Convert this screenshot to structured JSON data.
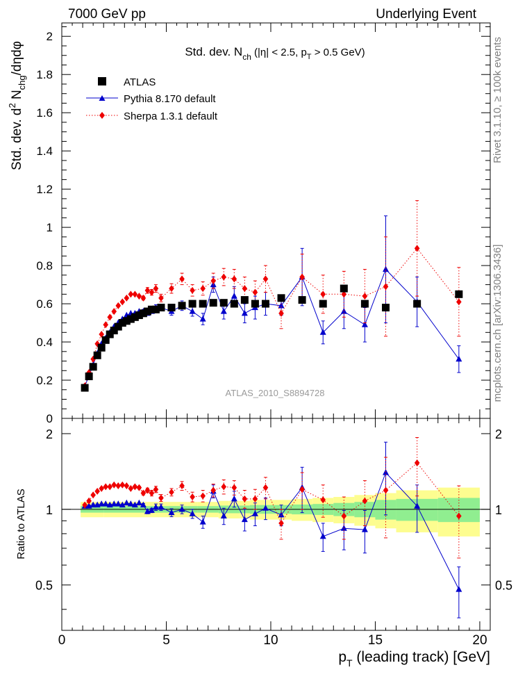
{
  "header": {
    "left": "7000 GeV pp",
    "right": "Underlying Event"
  },
  "side_text": {
    "top": "Rivet 3.1.10, ≥ 100k events",
    "bottom": "mcplots.cern.ch [arXiv:1306.3436]"
  },
  "chart_data": [
    {
      "type": "scatter",
      "title": {
        "main": "Std. dev. N",
        "sub1": "ch",
        "cond": " (|η| < 2.5, p",
        "sub2": "T",
        "tail": " > 0.5 GeV)"
      },
      "ylabel": {
        "a": "Std. dev. d",
        "sup": "2",
        "b": " N",
        "sub": "chg",
        "c": "/dηdφ"
      },
      "watermark": "ATLAS_2010_S8894728",
      "xlim": [
        0,
        20.5
      ],
      "ylim": [
        0,
        2.07
      ],
      "yticks": [
        0,
        0.2,
        0.4,
        0.6,
        0.8,
        1,
        1.2,
        1.4,
        1.6,
        1.8,
        2
      ],
      "ytick_labels": [
        "0",
        "0.2",
        "0.4",
        "0.6",
        "0.8",
        "1",
        "1.2",
        "1.4",
        "1.6",
        "1.8",
        "2"
      ],
      "legend_position": "top-left",
      "series": [
        {
          "name": "ATLAS",
          "color": "#000000",
          "marker": "square",
          "x": [
            1.1,
            1.3,
            1.5,
            1.7,
            1.9,
            2.1,
            2.3,
            2.5,
            2.7,
            2.9,
            3.1,
            3.3,
            3.5,
            3.7,
            3.9,
            4.1,
            4.3,
            4.5,
            4.75,
            5.25,
            5.75,
            6.25,
            6.75,
            7.25,
            7.75,
            8.25,
            8.75,
            9.25,
            9.75,
            10.5,
            11.5,
            12.5,
            13.5,
            14.5,
            15.5,
            17.0,
            19.0
          ],
          "y": [
            0.16,
            0.22,
            0.27,
            0.33,
            0.37,
            0.41,
            0.44,
            0.46,
            0.48,
            0.5,
            0.51,
            0.52,
            0.53,
            0.54,
            0.55,
            0.56,
            0.57,
            0.57,
            0.58,
            0.58,
            0.59,
            0.6,
            0.6,
            0.605,
            0.605,
            0.6,
            0.62,
            0.6,
            0.6,
            0.63,
            0.62,
            0.6,
            0.68,
            0.6,
            0.58,
            0.6,
            0.65
          ],
          "err": [
            0.005,
            0.005,
            0.005,
            0.005,
            0.005,
            0.005,
            0.005,
            0.005,
            0.005,
            0.005,
            0.005,
            0.005,
            0.005,
            0.005,
            0.005,
            0.005,
            0.005,
            0.005,
            0.005,
            0.005,
            0.005,
            0.005,
            0.005,
            0.005,
            0.005,
            0.005,
            0.005,
            0.005,
            0.005,
            0.01,
            0.01,
            0.01,
            0.01,
            0.01,
            0.01,
            0.01,
            0.01
          ]
        },
        {
          "name": "Pythia 8.170 default",
          "color": "#0000cc",
          "marker": "triangle",
          "line": "solid",
          "x": [
            1.1,
            1.3,
            1.5,
            1.7,
            1.9,
            2.1,
            2.3,
            2.5,
            2.7,
            2.9,
            3.1,
            3.3,
            3.5,
            3.7,
            3.9,
            4.1,
            4.3,
            4.5,
            4.75,
            5.25,
            5.75,
            6.25,
            6.75,
            7.25,
            7.75,
            8.25,
            8.75,
            9.25,
            9.75,
            10.5,
            11.5,
            12.5,
            13.5,
            14.5,
            15.5,
            17.0,
            19.0
          ],
          "y": [
            0.17,
            0.22,
            0.28,
            0.34,
            0.39,
            0.42,
            0.45,
            0.48,
            0.5,
            0.52,
            0.54,
            0.55,
            0.55,
            0.56,
            0.56,
            0.55,
            0.56,
            0.58,
            0.58,
            0.56,
            0.59,
            0.56,
            0.52,
            0.7,
            0.56,
            0.64,
            0.55,
            0.58,
            0.6,
            0.59,
            0.74,
            0.45,
            0.56,
            0.49,
            0.78,
            0.61,
            0.31
          ],
          "err": [
            0.005,
            0.005,
            0.005,
            0.005,
            0.005,
            0.005,
            0.005,
            0.005,
            0.005,
            0.005,
            0.005,
            0.005,
            0.005,
            0.005,
            0.01,
            0.01,
            0.01,
            0.015,
            0.015,
            0.02,
            0.025,
            0.025,
            0.03,
            0.04,
            0.04,
            0.05,
            0.05,
            0.06,
            0.06,
            0.05,
            0.15,
            0.06,
            0.09,
            0.09,
            0.28,
            0.13,
            0.07
          ]
        },
        {
          "name": "Sherpa 1.3.1 default",
          "color": "#ee0000",
          "marker": "diamond",
          "line": "dotted",
          "x": [
            1.1,
            1.3,
            1.5,
            1.7,
            1.9,
            2.1,
            2.3,
            2.5,
            2.7,
            2.9,
            3.1,
            3.3,
            3.5,
            3.7,
            3.9,
            4.1,
            4.3,
            4.5,
            4.75,
            5.25,
            5.75,
            6.25,
            6.75,
            7.25,
            7.75,
            8.25,
            8.75,
            9.25,
            9.75,
            10.5,
            11.5,
            12.5,
            13.5,
            14.5,
            15.5,
            17.0,
            19.0
          ],
          "y": [
            0.17,
            0.24,
            0.31,
            0.39,
            0.44,
            0.49,
            0.53,
            0.56,
            0.59,
            0.61,
            0.63,
            0.65,
            0.65,
            0.64,
            0.63,
            0.67,
            0.66,
            0.68,
            0.63,
            0.68,
            0.73,
            0.67,
            0.68,
            0.72,
            0.74,
            0.73,
            0.68,
            0.66,
            0.73,
            0.55,
            0.74,
            0.65,
            0.65,
            0.64,
            0.69,
            0.89,
            0.61
          ],
          "err": [
            0.005,
            0.005,
            0.005,
            0.005,
            0.005,
            0.005,
            0.005,
            0.005,
            0.005,
            0.005,
            0.005,
            0.005,
            0.005,
            0.005,
            0.01,
            0.015,
            0.015,
            0.02,
            0.02,
            0.025,
            0.03,
            0.03,
            0.035,
            0.04,
            0.045,
            0.05,
            0.06,
            0.06,
            0.07,
            0.08,
            0.12,
            0.1,
            0.12,
            0.14,
            0.26,
            0.25,
            0.18
          ]
        }
      ]
    },
    {
      "type": "scatter",
      "ylabel": "Ratio to ATLAS",
      "xlabel": {
        "a": "p",
        "sub": "T",
        "b": " (leading track) [GeV]"
      },
      "xlim": [
        0,
        20.5
      ],
      "ylim": [
        0.33,
        2.3
      ],
      "xticks": [
        0,
        5,
        10,
        15,
        20
      ],
      "xtick_labels": [
        "0",
        "5",
        "10",
        "15",
        "20"
      ],
      "yticks": [
        0.5,
        1,
        2
      ],
      "ytick_labels": [
        "0.5",
        "1",
        "2"
      ],
      "band": {
        "inner_color": "#90ee90",
        "outer_color": "#fdfd90",
        "edges": [
          0.9,
          2.0,
          4.0,
          5.0,
          5.5,
          6.0,
          6.5,
          7.0,
          7.5,
          8.0,
          8.5,
          9.0,
          9.5,
          10.0,
          11.0,
          12.0,
          13.0,
          14.0,
          15.0,
          16.0,
          18.0,
          20.0
        ],
        "inner": [
          0.03,
          0.03,
          0.03,
          0.03,
          0.03,
          0.03,
          0.03,
          0.03,
          0.035,
          0.035,
          0.035,
          0.04,
          0.04,
          0.04,
          0.045,
          0.05,
          0.06,
          0.07,
          0.09,
          0.1,
          0.11
        ],
        "outer": [
          0.07,
          0.07,
          0.07,
          0.07,
          0.07,
          0.07,
          0.07,
          0.07,
          0.08,
          0.08,
          0.08,
          0.09,
          0.09,
          0.09,
          0.1,
          0.11,
          0.12,
          0.14,
          0.16,
          0.19,
          0.22
        ]
      },
      "series": [
        {
          "name": "Pythia 8.170 default",
          "color": "#0000cc",
          "marker": "triangle",
          "line": "solid",
          "x": [
            1.1,
            1.3,
            1.5,
            1.7,
            1.9,
            2.1,
            2.3,
            2.5,
            2.7,
            2.9,
            3.1,
            3.3,
            3.5,
            3.7,
            3.9,
            4.1,
            4.3,
            4.5,
            4.75,
            5.25,
            5.75,
            6.25,
            6.75,
            7.25,
            7.75,
            8.25,
            8.75,
            9.25,
            9.75,
            10.5,
            11.5,
            12.5,
            13.5,
            14.5,
            15.5,
            17.0,
            19.0
          ],
          "y": [
            1.03,
            1.03,
            1.04,
            1.04,
            1.05,
            1.05,
            1.04,
            1.05,
            1.05,
            1.04,
            1.06,
            1.05,
            1.04,
            1.06,
            1.04,
            0.98,
            0.99,
            1.02,
            1.02,
            0.97,
            1.0,
            0.96,
            0.89,
            1.18,
            0.94,
            1.1,
            0.91,
            0.96,
            1.01,
            0.95,
            1.22,
            0.78,
            0.84,
            0.83,
            1.4,
            1.03,
            0.48
          ],
          "err": [
            0.01,
            0.01,
            0.01,
            0.01,
            0.01,
            0.01,
            0.01,
            0.01,
            0.01,
            0.01,
            0.01,
            0.01,
            0.01,
            0.01,
            0.015,
            0.02,
            0.02,
            0.03,
            0.03,
            0.035,
            0.04,
            0.04,
            0.05,
            0.07,
            0.07,
            0.08,
            0.09,
            0.1,
            0.1,
            0.09,
            0.25,
            0.1,
            0.15,
            0.16,
            0.45,
            0.22,
            0.11
          ]
        },
        {
          "name": "Sherpa 1.3.1 default",
          "color": "#ee0000",
          "marker": "diamond",
          "line": "dotted",
          "x": [
            1.1,
            1.3,
            1.5,
            1.7,
            1.9,
            2.1,
            2.3,
            2.5,
            2.7,
            2.9,
            3.1,
            3.3,
            3.5,
            3.7,
            3.9,
            4.1,
            4.3,
            4.5,
            4.75,
            5.25,
            5.75,
            6.25,
            6.75,
            7.25,
            7.75,
            8.25,
            8.75,
            9.25,
            9.75,
            10.5,
            11.5,
            12.5,
            13.5,
            14.5,
            15.5,
            17.0,
            19.0
          ],
          "y": [
            1.04,
            1.08,
            1.14,
            1.18,
            1.21,
            1.23,
            1.23,
            1.25,
            1.24,
            1.25,
            1.24,
            1.21,
            1.23,
            1.22,
            1.16,
            1.19,
            1.16,
            1.2,
            1.11,
            1.17,
            1.24,
            1.12,
            1.13,
            1.19,
            1.23,
            1.22,
            1.1,
            1.1,
            1.22,
            0.88,
            1.2,
            1.09,
            0.94,
            1.08,
            1.19,
            1.53,
            0.94
          ],
          "err": [
            0.01,
            0.01,
            0.01,
            0.01,
            0.01,
            0.01,
            0.01,
            0.01,
            0.01,
            0.01,
            0.01,
            0.01,
            0.015,
            0.015,
            0.02,
            0.025,
            0.03,
            0.035,
            0.035,
            0.04,
            0.05,
            0.05,
            0.06,
            0.07,
            0.08,
            0.08,
            0.09,
            0.1,
            0.12,
            0.12,
            0.2,
            0.16,
            0.18,
            0.22,
            0.42,
            0.4,
            0.3
          ]
        }
      ]
    }
  ]
}
